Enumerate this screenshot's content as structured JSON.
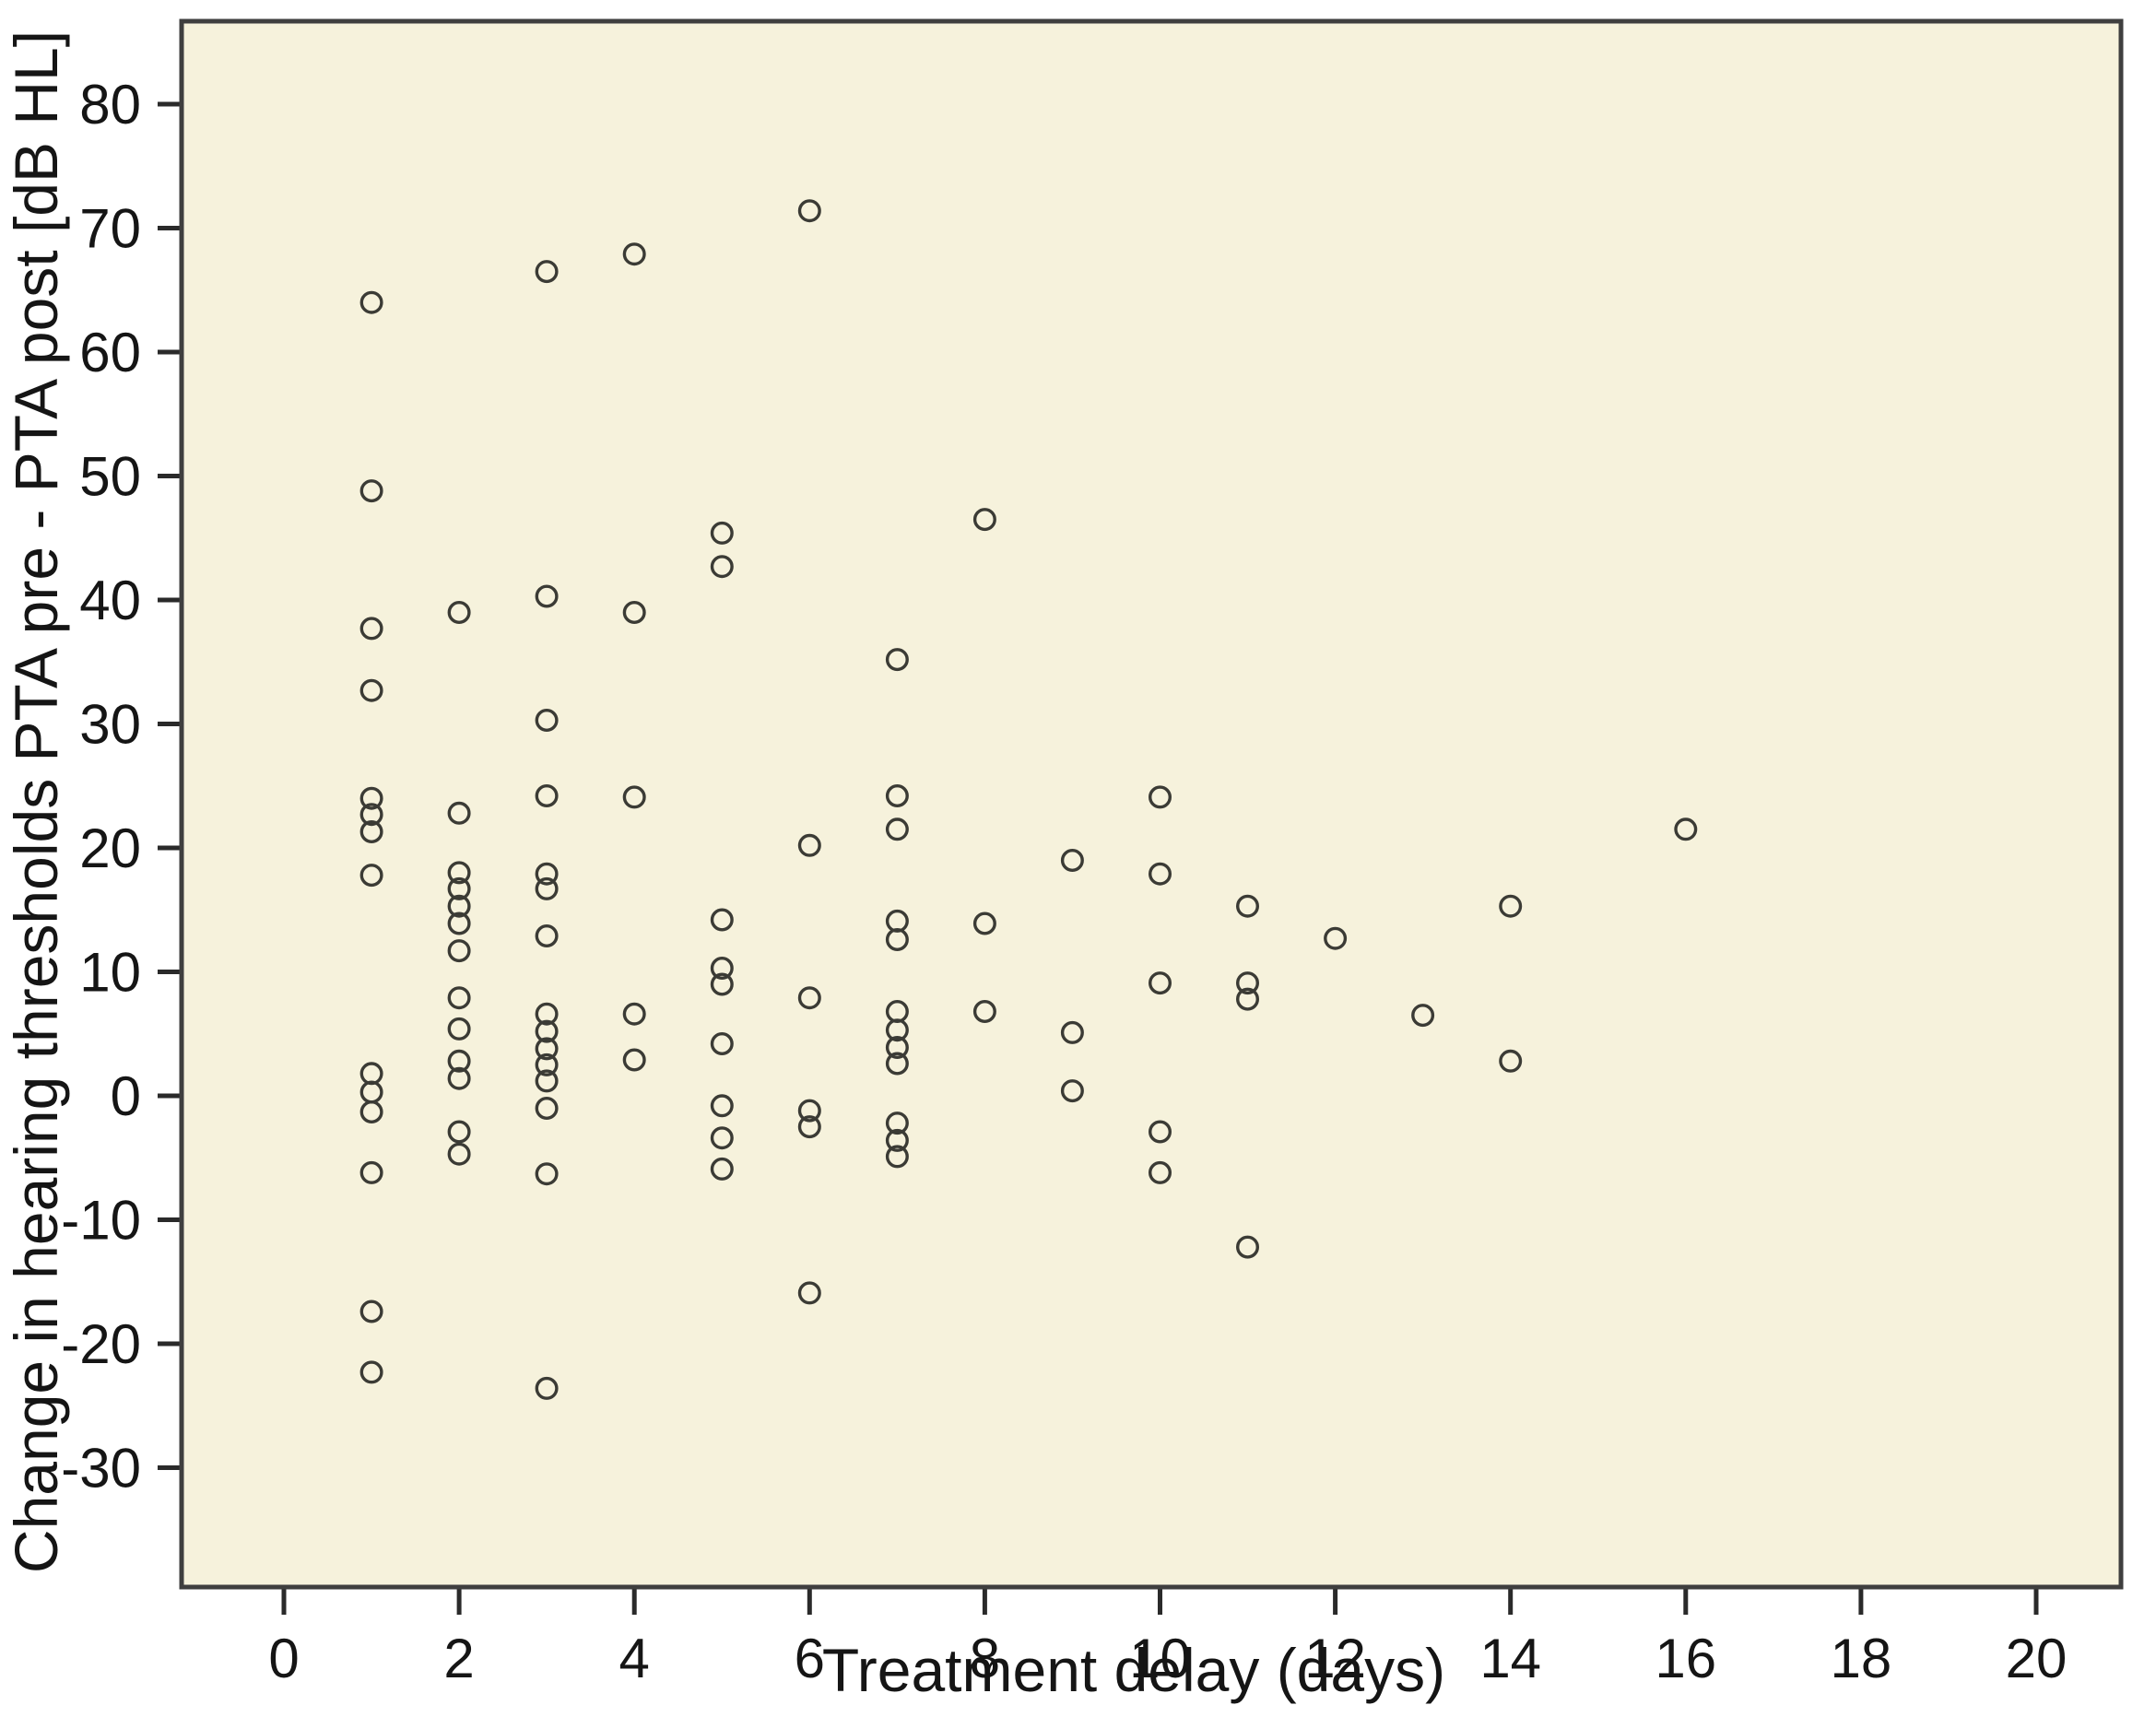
{
  "chart_data": {
    "type": "scatter",
    "title": "",
    "xlabel": "Treatment delay (days)",
    "ylabel": "Change in hearing thresholds PTA pre - PTA post [dB HL]",
    "x_ticks": [
      0,
      2,
      4,
      6,
      8,
      10,
      12,
      14,
      16,
      18,
      20
    ],
    "y_ticks": [
      80,
      70,
      60,
      50,
      40,
      30,
      20,
      10,
      0,
      -10,
      -20,
      -30
    ],
    "xlim": [
      -1.2,
      21.0
    ],
    "ylim": [
      -39.6,
      86.7
    ],
    "grid": false,
    "legend_position": "none",
    "marker": "open-circle",
    "points": [
      [
        1,
        64.0
      ],
      [
        1,
        48.8
      ],
      [
        1,
        37.7
      ],
      [
        1,
        32.7
      ],
      [
        1,
        24.0
      ],
      [
        1,
        22.7
      ],
      [
        1,
        21.3
      ],
      [
        1,
        17.8
      ],
      [
        1,
        1.8
      ],
      [
        1,
        0.3
      ],
      [
        1,
        -1.3
      ],
      [
        1,
        -6.2
      ],
      [
        1,
        -17.4
      ],
      [
        1,
        -22.3
      ],
      [
        2,
        39.0
      ],
      [
        2,
        22.8
      ],
      [
        2,
        18.0
      ],
      [
        2,
        16.7
      ],
      [
        2,
        15.3
      ],
      [
        2,
        13.9
      ],
      [
        2,
        11.7
      ],
      [
        2,
        7.9
      ],
      [
        2,
        5.4
      ],
      [
        2,
        2.8
      ],
      [
        2,
        1.4
      ],
      [
        2,
        -2.9
      ],
      [
        2,
        -4.7
      ],
      [
        3,
        66.5
      ],
      [
        3,
        40.3
      ],
      [
        3,
        30.3
      ],
      [
        3,
        24.2
      ],
      [
        3,
        17.9
      ],
      [
        3,
        16.7
      ],
      [
        3,
        12.9
      ],
      [
        3,
        6.6
      ],
      [
        3,
        5.2
      ],
      [
        3,
        3.8
      ],
      [
        3,
        2.5
      ],
      [
        3,
        1.2
      ],
      [
        3,
        -1.0
      ],
      [
        3,
        -6.3
      ],
      [
        3,
        -23.6
      ],
      [
        4,
        67.9
      ],
      [
        4,
        39.0
      ],
      [
        4,
        24.1
      ],
      [
        4,
        6.6
      ],
      [
        4,
        2.9
      ],
      [
        5,
        45.4
      ],
      [
        5,
        42.7
      ],
      [
        5,
        14.2
      ],
      [
        5,
        10.3
      ],
      [
        5,
        9.0
      ],
      [
        5,
        4.2
      ],
      [
        5,
        -0.8
      ],
      [
        5,
        -3.4
      ],
      [
        5,
        -5.9
      ],
      [
        6,
        71.4
      ],
      [
        6,
        20.2
      ],
      [
        6,
        7.9
      ],
      [
        6,
        -1.2
      ],
      [
        6,
        -2.5
      ],
      [
        6,
        -15.9
      ],
      [
        7,
        35.2
      ],
      [
        7,
        24.2
      ],
      [
        7,
        21.5
      ],
      [
        7,
        14.1
      ],
      [
        7,
        12.6
      ],
      [
        7,
        6.8
      ],
      [
        7,
        5.3
      ],
      [
        7,
        3.9
      ],
      [
        7,
        2.6
      ],
      [
        7,
        -2.2
      ],
      [
        7,
        -3.6
      ],
      [
        7,
        -4.9
      ],
      [
        8,
        46.5
      ],
      [
        8,
        13.9
      ],
      [
        8,
        6.8
      ],
      [
        9,
        19.0
      ],
      [
        9,
        5.1
      ],
      [
        9,
        0.4
      ],
      [
        10,
        24.1
      ],
      [
        10,
        17.9
      ],
      [
        10,
        9.1
      ],
      [
        10,
        -2.9
      ],
      [
        10,
        -6.2
      ],
      [
        11,
        15.3
      ],
      [
        11,
        9.1
      ],
      [
        11,
        7.8
      ],
      [
        11,
        -12.2
      ],
      [
        12,
        12.7
      ],
      [
        13,
        6.5
      ],
      [
        14,
        15.3
      ],
      [
        14,
        2.8
      ],
      [
        16,
        21.5
      ]
    ]
  },
  "colors": {
    "page_bg": "#ffffff",
    "plot_bg": "#F6F2DC",
    "frame": "#3f3f3f",
    "tick": "#2a2a2a",
    "marker_stroke": "#3b3b35",
    "text": "#151515"
  }
}
